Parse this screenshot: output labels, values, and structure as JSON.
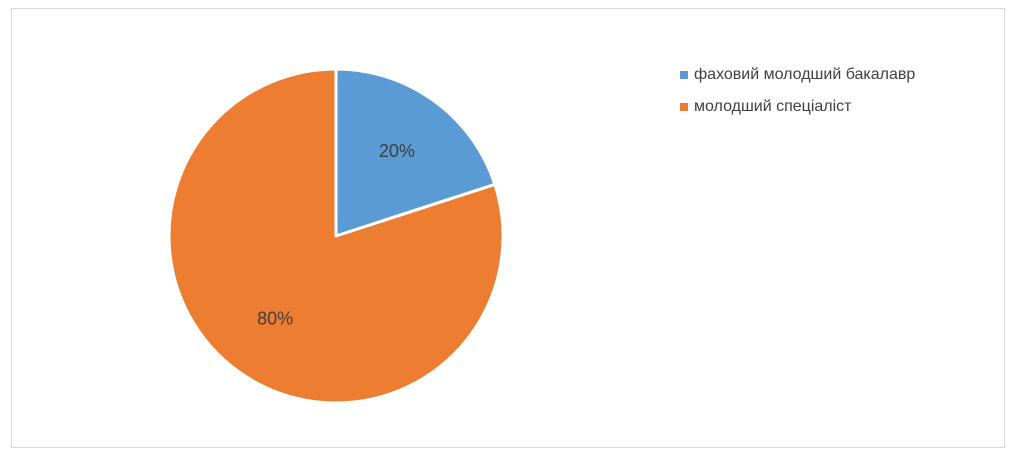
{
  "chart_data": {
    "type": "pie",
    "categories": [
      "фаховий молодший бакалавр",
      "молодший спеціаліст"
    ],
    "values": [
      20,
      80
    ],
    "data_labels": [
      "20%",
      "80%"
    ],
    "colors": [
      "#5b9bd5",
      "#ed7d31"
    ],
    "legend_position": "right",
    "title": ""
  }
}
